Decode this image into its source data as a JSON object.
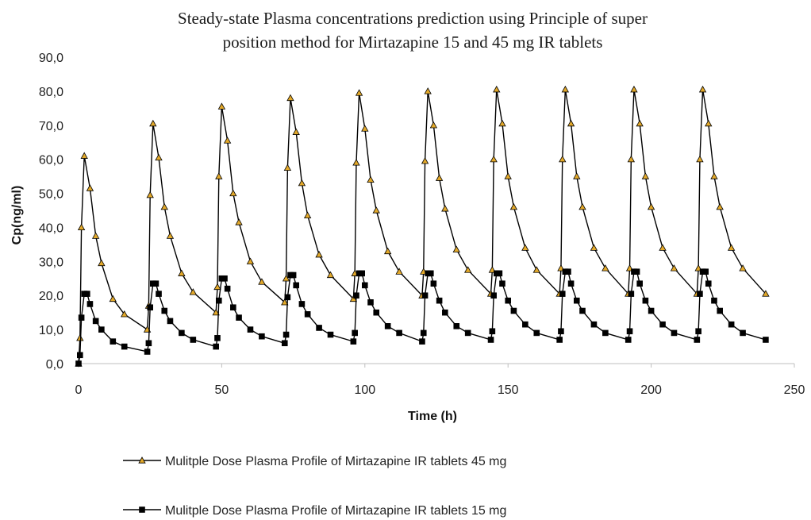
{
  "chart_data": {
    "type": "line",
    "title_lines": [
      "Steady-state Plasma concentrations prediction using Principle of super",
      "position method for Mirtazapine 15  and 45 mg IR tablets"
    ],
    "xlabel": "Time (h)",
    "ylabel": "Cp(ng/ml)",
    "xlim": [
      0,
      250
    ],
    "ylim": [
      0,
      90
    ],
    "x_ticks": [
      0,
      50,
      100,
      150,
      200,
      250
    ],
    "y_ticks": [
      0,
      10,
      20,
      30,
      40,
      50,
      60,
      70,
      80,
      90
    ],
    "y_tick_labels": [
      "0,0",
      "10,0",
      "20,0",
      "30,0",
      "40,0",
      "50,0",
      "60,0",
      "70,0",
      "80,0",
      "90,0"
    ],
    "grid": false,
    "legend_position": "bottom",
    "series": [
      {
        "name": "Mulitple Dose Plasma Profile of Mirtazapine IR tablets 45 mg",
        "marker": "triangle",
        "line_color": "#000000",
        "marker_fill": "#e3a92a",
        "x": [
          0,
          0.5,
          1,
          2,
          4,
          6,
          8,
          12,
          16,
          24,
          24.5,
          25,
          26,
          28,
          30,
          32,
          36,
          40,
          48,
          48.5,
          49,
          50,
          52,
          54,
          56,
          60,
          64,
          72,
          72.5,
          73,
          74,
          76,
          78,
          80,
          84,
          88,
          96,
          96.5,
          97,
          98,
          100,
          102,
          104,
          108,
          112,
          120,
          120.5,
          121,
          122,
          124,
          126,
          128,
          132,
          136,
          144,
          144.5,
          145,
          146,
          148,
          150,
          152,
          156,
          160,
          168,
          168.5,
          169,
          170,
          172,
          174,
          176,
          180,
          184,
          192,
          192.5,
          193,
          194,
          196,
          198,
          200,
          204,
          208,
          216,
          216.5,
          217,
          218,
          220,
          222,
          224,
          228,
          232,
          240
        ],
        "values": [
          0,
          7.5,
          40,
          61,
          51.5,
          37.5,
          29.5,
          19,
          14.5,
          10,
          17,
          49.5,
          70.5,
          60.5,
          46,
          37.5,
          26.5,
          21,
          15,
          22.5,
          55,
          75.5,
          65.5,
          50,
          41.5,
          30,
          24,
          18,
          25,
          57.5,
          78,
          68,
          53,
          43.5,
          32,
          26,
          19,
          26.5,
          59,
          79.5,
          69,
          54,
          45,
          33,
          27,
          20,
          27,
          59.5,
          80,
          70,
          54.5,
          45.5,
          33.5,
          27.5,
          20.5,
          27.5,
          60,
          80.5,
          70.5,
          55,
          46,
          34,
          27.5,
          20.5,
          28,
          60,
          80.5,
          70.5,
          55,
          46,
          34,
          28,
          20.5,
          28,
          60,
          80.5,
          70.5,
          55,
          46,
          34,
          28,
          20.5,
          28,
          60,
          80.5,
          70.5,
          55,
          46,
          34,
          28,
          20.5
        ]
      },
      {
        "name": "Mulitple Dose Plasma Profile of Mirtazapine IR tablets 15 mg",
        "marker": "square",
        "line_color": "#000000",
        "marker_fill": "#000000",
        "x": [
          0,
          0.5,
          1,
          2,
          3,
          4,
          6,
          8,
          12,
          16,
          24,
          24.5,
          25,
          26,
          27,
          28,
          30,
          32,
          36,
          40,
          48,
          48.5,
          49,
          50,
          51,
          52,
          54,
          56,
          60,
          64,
          72,
          72.5,
          73,
          74,
          75,
          76,
          78,
          80,
          84,
          88,
          96,
          96.5,
          97,
          98,
          99,
          100,
          102,
          104,
          108,
          112,
          120,
          120.5,
          121,
          122,
          123,
          124,
          126,
          128,
          132,
          136,
          144,
          144.5,
          145,
          146,
          147,
          148,
          150,
          152,
          156,
          160,
          168,
          168.5,
          169,
          170,
          171,
          172,
          174,
          176,
          180,
          184,
          192,
          192.5,
          193,
          194,
          195,
          196,
          198,
          200,
          204,
          208,
          216,
          216.5,
          217,
          218,
          219,
          220,
          222,
          224,
          228,
          232,
          240
        ],
        "values": [
          0,
          2.5,
          13.5,
          20.5,
          20.5,
          17.5,
          12.5,
          10,
          6.5,
          5,
          3.5,
          6,
          16.5,
          23.5,
          23.5,
          20.5,
          15.5,
          12.5,
          9,
          7,
          5,
          7.5,
          18.5,
          25,
          25,
          22,
          16.5,
          13.5,
          10,
          8,
          6,
          8.5,
          19.5,
          26,
          26,
          23,
          17.5,
          14.5,
          10.5,
          8.5,
          6.5,
          9,
          20,
          26.5,
          26.5,
          23,
          18,
          15,
          11,
          9,
          6.5,
          9,
          20,
          26.5,
          26.5,
          23.5,
          18.5,
          15,
          11,
          9,
          7,
          9.5,
          20,
          26.5,
          26.5,
          23.5,
          18.5,
          15.5,
          11.5,
          9,
          7,
          9.5,
          20.5,
          27,
          27,
          23.5,
          18.5,
          15.5,
          11.5,
          9,
          7,
          9.5,
          20.5,
          27,
          27,
          23.5,
          18.5,
          15.5,
          11.5,
          9,
          7,
          9.5,
          20.5,
          27,
          27,
          23.5,
          18.5,
          15.5,
          11.5,
          9,
          7
        ]
      }
    ]
  }
}
